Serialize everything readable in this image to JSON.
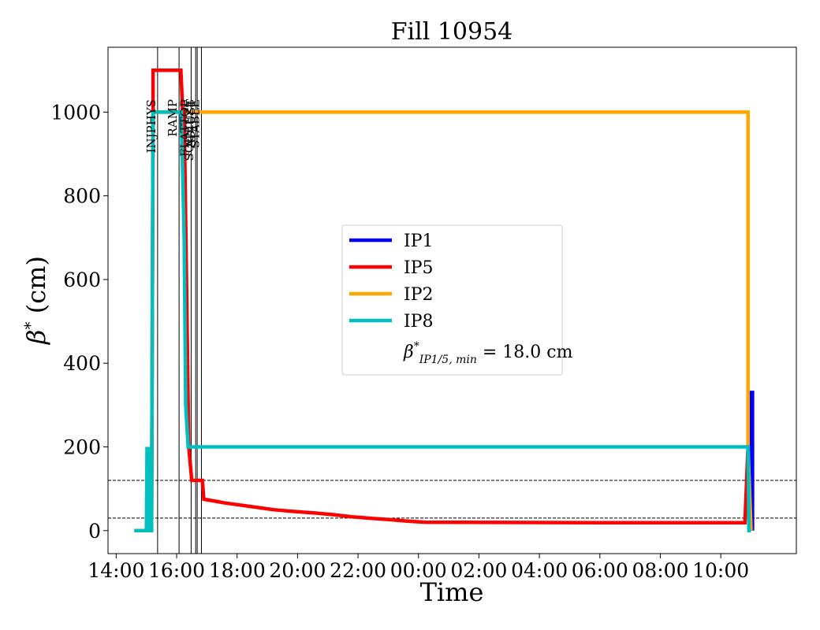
{
  "chart_data": {
    "type": "line",
    "title": "Fill 10954",
    "xlabel": "Time",
    "ylabel_symbol": "β",
    "ylabel_sup": "*",
    "ylabel_unit": "(cm)",
    "x_unit": "hours",
    "x_ticks": [
      {
        "value": 14,
        "label": "14:00"
      },
      {
        "value": 16,
        "label": "16:00"
      },
      {
        "value": 18,
        "label": "18:00"
      },
      {
        "value": 20,
        "label": "20:00"
      },
      {
        "value": 22,
        "label": "22:00"
      },
      {
        "value": 24,
        "label": "00:00"
      },
      {
        "value": 26,
        "label": "02:00"
      },
      {
        "value": 28,
        "label": "04:00"
      },
      {
        "value": 30,
        "label": "06:00"
      },
      {
        "value": 32,
        "label": "08:00"
      },
      {
        "value": 34,
        "label": "10:00"
      }
    ],
    "y_ticks": [
      0,
      200,
      400,
      600,
      800,
      1000
    ],
    "xlim": [
      13.73,
      36.5
    ],
    "ylim": [
      -55,
      1155
    ],
    "grid": false,
    "legend_position": "center",
    "phase_markers": [
      {
        "label": "INJPHYS",
        "x": 15.37
      },
      {
        "label": "RAMP",
        "x": 16.08
      },
      {
        "label": "FLATTOP",
        "x": 16.48
      },
      {
        "label": "SQUEEZE",
        "x": 16.63
      },
      {
        "label": "ADJUST",
        "x": 16.68
      },
      {
        "label": "STABLE",
        "x": 16.82
      }
    ],
    "hlines": [
      {
        "y": 120,
        "style": "dashed"
      },
      {
        "y": 30,
        "style": "dashed"
      }
    ],
    "series": [
      {
        "name": "IP1",
        "color": "#0000ff",
        "x": [
          34.95,
          34.95,
          35.05,
          35.05
        ],
        "y": [
          0,
          330,
          330,
          0
        ]
      },
      {
        "name": "IP5",
        "color": "#ff0000",
        "x": [
          14.6,
          15.17,
          15.22,
          15.22,
          16.14,
          16.2,
          16.25,
          16.4,
          16.5,
          16.55,
          16.85,
          16.9,
          17.3,
          17.6,
          18.0,
          18.6,
          19.2,
          19.8,
          20.6,
          21.2,
          21.8,
          22.5,
          23.1,
          23.6,
          24.2,
          30.0,
          34.8,
          34.9
        ],
        "y": [
          0,
          0,
          1000,
          1100,
          1100,
          1000,
          1000,
          200,
          120,
          120,
          120,
          75,
          70,
          66,
          62,
          56,
          50,
          46,
          42,
          38,
          33,
          29,
          26,
          23,
          20,
          19,
          19,
          200
        ]
      },
      {
        "name": "IP2",
        "color": "#ffa500",
        "x": [
          14.6,
          15.17,
          15.22,
          15.3,
          16.2,
          20.0,
          30.0,
          34.9,
          34.9,
          35.0
        ],
        "y": [
          0,
          0,
          1000,
          1000,
          1000,
          1000,
          1000,
          1000,
          200,
          0
        ]
      },
      {
        "name": "IP8",
        "color": "#00bfbf",
        "x": [
          14.6,
          15.0,
          15.02,
          15.05,
          15.08,
          15.1,
          15.12,
          15.17,
          15.22,
          16.15,
          16.25,
          16.3,
          16.38,
          20.0,
          30.0,
          34.9,
          34.93,
          35.0
        ],
        "y": [
          0,
          0,
          200,
          0,
          200,
          0,
          0,
          0,
          1000,
          1000,
          700,
          300,
          200,
          200,
          200,
          200,
          0,
          0
        ]
      }
    ],
    "legend_note_symbol": "β",
    "legend_note_sup": "*",
    "legend_note_sub": "IP1/5, min",
    "legend_note_value": " = 18.0 cm"
  }
}
